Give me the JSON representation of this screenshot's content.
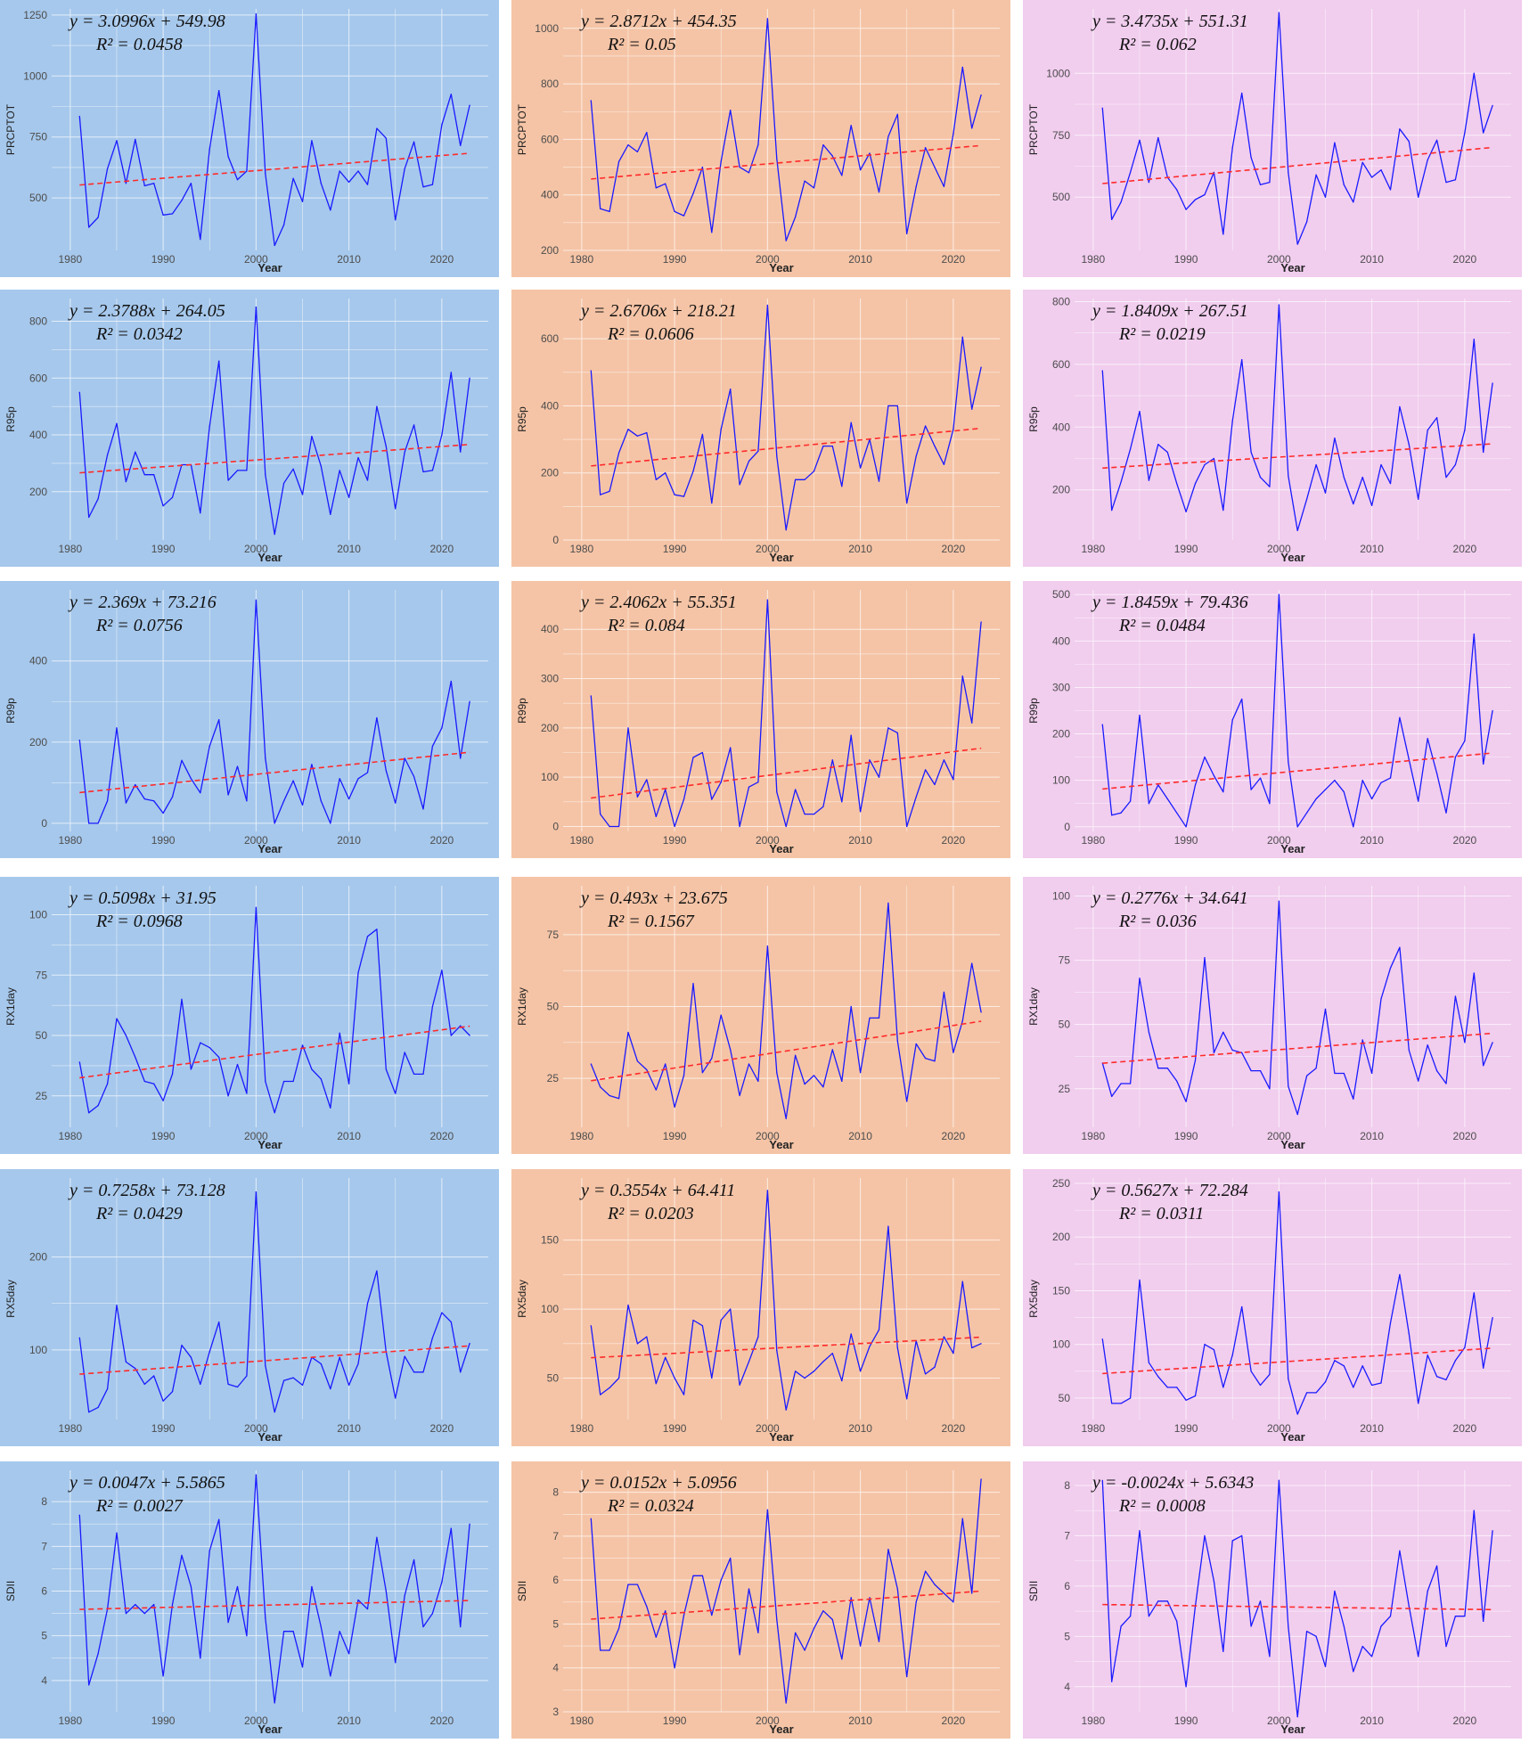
{
  "colors": {
    "Tmax": "#a6c8ec",
    "Tmin": "#f5c4a6",
    "Tmean": "#f1cdee",
    "series": "#1a1aff",
    "trend": "#ff2a2a",
    "grid": "#ffffff"
  },
  "chart_data": [
    {
      "type": "line",
      "background": "#a6c8ec",
      "ylabel": "PRCPTOT",
      "xlabel": "Year",
      "equation": "y = 3.0996x + 549.98",
      "r2": "R² = 0.0458",
      "slope": 3.0996,
      "intercept": 549.98,
      "xlim": [
        1978,
        2025
      ],
      "ylim": [
        285,
        1275
      ],
      "xticks": [
        1980,
        1990,
        2000,
        2010,
        2020
      ],
      "yticks": [
        500,
        750,
        1000,
        1250
      ],
      "grid": true,
      "values": [
        835,
        380,
        420,
        620,
        735,
        560,
        740,
        550,
        560,
        430,
        435,
        490,
        560,
        330,
        700,
        940,
        670,
        575,
        610,
        1255,
        600,
        305,
        390,
        580,
        485,
        735,
        560,
        450,
        610,
        565,
        610,
        555,
        785,
        745,
        410,
        620,
        730,
        545,
        555,
        800,
        925,
        715,
        880
      ]
    },
    {
      "type": "line",
      "background": "#f5c4a6",
      "ylabel": "PRCPTOT",
      "xlabel": "Year",
      "equation": "y = 2.8712x + 454.35",
      "r2": "R² = 0.05",
      "slope": 2.8712,
      "intercept": 454.35,
      "xlim": [
        1978,
        2025
      ],
      "ylim": [
        200,
        1070
      ],
      "xticks": [
        1980,
        1990,
        2000,
        2010,
        2020
      ],
      "yticks": [
        200,
        400,
        600,
        800,
        1000
      ],
      "grid": true,
      "values": [
        740,
        350,
        340,
        520,
        580,
        555,
        625,
        425,
        440,
        340,
        325,
        405,
        500,
        265,
        520,
        705,
        500,
        480,
        580,
        1035,
        530,
        235,
        320,
        450,
        425,
        580,
        540,
        470,
        650,
        490,
        550,
        410,
        610,
        690,
        260,
        430,
        570,
        500,
        430,
        620,
        860,
        640,
        760
      ]
    },
    {
      "type": "line",
      "background": "#f1cdee",
      "ylabel": "PRCPTOT",
      "xlabel": "Year",
      "equation": "y = 3.4735x + 551.31",
      "r2": "R² = 0.062",
      "slope": 3.4735,
      "intercept": 551.31,
      "xlim": [
        1978,
        2025
      ],
      "ylim": [
        285,
        1260
      ],
      "xticks": [
        1980,
        1990,
        2000,
        2010,
        2020
      ],
      "yticks": [
        500,
        750,
        1000
      ],
      "grid": true,
      "values": [
        860,
        410,
        480,
        600,
        730,
        560,
        740,
        580,
        530,
        450,
        490,
        510,
        600,
        350,
        700,
        920,
        660,
        550,
        560,
        1245,
        600,
        310,
        400,
        590,
        500,
        720,
        550,
        480,
        640,
        580,
        610,
        530,
        775,
        725,
        500,
        650,
        730,
        560,
        570,
        760,
        1000,
        760,
        870
      ]
    },
    {
      "type": "line",
      "background": "#a6c8ec",
      "ylabel": "R95p",
      "xlabel": "Year",
      "equation": "y = 2.3788x + 264.05",
      "r2": "R² = 0.0342",
      "slope": 2.3788,
      "intercept": 264.05,
      "xlim": [
        1978,
        2025
      ],
      "ylim": [
        30,
        880
      ],
      "xticks": [
        1980,
        1990,
        2000,
        2010,
        2020
      ],
      "yticks": [
        200,
        400,
        600,
        800
      ],
      "grid": true,
      "values": [
        550,
        110,
        175,
        330,
        440,
        235,
        340,
        260,
        260,
        150,
        180,
        295,
        295,
        125,
        430,
        660,
        240,
        275,
        275,
        850,
        260,
        50,
        230,
        280,
        190,
        395,
        290,
        120,
        275,
        180,
        320,
        240,
        500,
        360,
        140,
        340,
        435,
        270,
        275,
        400,
        620,
        340,
        600
      ]
    },
    {
      "type": "line",
      "background": "#f5c4a6",
      "ylabel": "R95p",
      "xlabel": "Year",
      "equation": "y = 2.6706x + 218.21",
      "r2": "R² = 0.0606",
      "slope": 2.6706,
      "intercept": 218.21,
      "xlim": [
        1978,
        2025
      ],
      "ylim": [
        0,
        720
      ],
      "xticks": [
        1980,
        1990,
        2000,
        2010,
        2020
      ],
      "yticks": [
        0,
        200,
        400,
        600
      ],
      "grid": true,
      "values": [
        505,
        135,
        145,
        260,
        330,
        310,
        320,
        180,
        200,
        135,
        130,
        205,
        315,
        110,
        330,
        450,
        165,
        235,
        265,
        700,
        250,
        30,
        180,
        180,
        205,
        280,
        280,
        160,
        350,
        215,
        300,
        175,
        400,
        400,
        110,
        250,
        340,
        280,
        225,
        330,
        605,
        390,
        515
      ]
    },
    {
      "type": "line",
      "background": "#f1cdee",
      "ylabel": "R95p",
      "xlabel": "Year",
      "equation": "y = 1.8409x + 267.51",
      "r2": "R² = 0.0219",
      "slope": 1.8409,
      "intercept": 267.51,
      "xlim": [
        1978,
        2025
      ],
      "ylim": [
        40,
        810
      ],
      "xticks": [
        1980,
        1990,
        2000,
        2010,
        2020
      ],
      "yticks": [
        200,
        400,
        600,
        800
      ],
      "grid": true,
      "values": [
        580,
        135,
        225,
        330,
        450,
        230,
        345,
        320,
        220,
        130,
        220,
        280,
        300,
        135,
        420,
        615,
        320,
        240,
        210,
        790,
        245,
        70,
        170,
        280,
        190,
        365,
        240,
        155,
        240,
        150,
        280,
        220,
        465,
        345,
        170,
        390,
        430,
        240,
        280,
        390,
        680,
        320,
        540
      ]
    },
    {
      "type": "line",
      "background": "#a6c8ec",
      "ylabel": "R99p",
      "xlabel": "Year",
      "equation": "y = 2.369x + 73.216",
      "r2": "R² = 0.0756",
      "slope": 2.369,
      "intercept": 73.216,
      "xlim": [
        1978,
        2025
      ],
      "ylim": [
        -20,
        575
      ],
      "xticks": [
        1980,
        1990,
        2000,
        2010,
        2020
      ],
      "yticks": [
        0,
        200,
        400
      ],
      "grid": true,
      "values": [
        205,
        0,
        0,
        55,
        235,
        50,
        95,
        60,
        55,
        25,
        65,
        155,
        110,
        75,
        190,
        255,
        70,
        140,
        55,
        550,
        160,
        0,
        55,
        105,
        45,
        145,
        55,
        0,
        110,
        60,
        110,
        125,
        260,
        130,
        50,
        160,
        115,
        35,
        190,
        235,
        350,
        160,
        300
      ]
    },
    {
      "type": "line",
      "background": "#f5c4a6",
      "ylabel": "R99p",
      "xlabel": "Year",
      "equation": "y = 2.4062x + 55.351",
      "r2": "R² = 0.084",
      "slope": 2.4062,
      "intercept": 55.351,
      "xlim": [
        1978,
        2025
      ],
      "ylim": [
        -10,
        480
      ],
      "xticks": [
        1980,
        1990,
        2000,
        2010,
        2020
      ],
      "yticks": [
        0,
        100,
        200,
        300,
        400
      ],
      "grid": true,
      "values": [
        265,
        25,
        0,
        0,
        200,
        60,
        95,
        20,
        75,
        0,
        55,
        140,
        150,
        55,
        90,
        160,
        0,
        80,
        90,
        460,
        70,
        0,
        75,
        25,
        25,
        40,
        135,
        50,
        185,
        30,
        135,
        100,
        200,
        190,
        0,
        60,
        115,
        85,
        135,
        95,
        305,
        210,
        415
      ]
    },
    {
      "type": "line",
      "background": "#f1cdee",
      "ylabel": "R99p",
      "xlabel": "Year",
      "equation": "y = 1.8459x + 79.436",
      "r2": "R² = 0.0484",
      "slope": 1.8459,
      "intercept": 79.436,
      "xlim": [
        1978,
        2025
      ],
      "ylim": [
        -10,
        510
      ],
      "xticks": [
        1980,
        1990,
        2000,
        2010,
        2020
      ],
      "yticks": [
        0,
        100,
        200,
        300,
        400,
        500
      ],
      "grid": true,
      "values": [
        220,
        25,
        30,
        55,
        240,
        50,
        90,
        60,
        30,
        0,
        90,
        150,
        110,
        75,
        230,
        275,
        80,
        105,
        50,
        500,
        140,
        0,
        30,
        60,
        80,
        100,
        75,
        0,
        100,
        60,
        95,
        105,
        235,
        145,
        55,
        190,
        115,
        30,
        150,
        185,
        415,
        135,
        250
      ]
    },
    {
      "type": "line",
      "background": "#a6c8ec",
      "ylabel": "RX1day",
      "xlabel": "Year",
      "equation": "y = 0.5098x + 31.95",
      "r2": "R² = 0.0968",
      "slope": 0.5098,
      "intercept": 31.95,
      "xlim": [
        1978,
        2025
      ],
      "ylim": [
        12,
        112
      ],
      "xticks": [
        1980,
        1990,
        2000,
        2010,
        2020
      ],
      "yticks": [
        25,
        50,
        75,
        100
      ],
      "grid": true,
      "values": [
        39,
        18,
        21,
        30,
        57,
        50,
        41,
        31,
        30,
        23,
        34,
        65,
        36,
        47,
        45,
        41,
        25,
        38,
        26,
        103,
        31,
        18,
        31,
        31,
        46,
        36,
        32,
        20,
        51,
        30,
        76,
        91,
        94,
        36,
        26,
        43,
        34,
        34,
        62,
        77,
        50,
        54,
        50
      ]
    },
    {
      "type": "line",
      "background": "#f5c4a6",
      "ylabel": "RX1day",
      "xlabel": "Year",
      "equation": "y = 0.493x + 23.675",
      "r2": "R² = 0.1567",
      "slope": 0.493,
      "intercept": 23.675,
      "xlim": [
        1978,
        2025
      ],
      "ylim": [
        8,
        92
      ],
      "xticks": [
        1980,
        1990,
        2000,
        2010,
        2020
      ],
      "yticks": [
        25,
        50,
        75
      ],
      "grid": true,
      "values": [
        30,
        22,
        19,
        18,
        41,
        31,
        28,
        21,
        30,
        15,
        26,
        58,
        27,
        32,
        47,
        35,
        19,
        30,
        24,
        71,
        27,
        11,
        33,
        23,
        26,
        22,
        35,
        24,
        50,
        27,
        46,
        46,
        86,
        38,
        17,
        37,
        32,
        31,
        55,
        34,
        45,
        65,
        48
      ]
    },
    {
      "type": "line",
      "background": "#f1cdee",
      "ylabel": "RX1day",
      "xlabel": "Year",
      "equation": "y = 0.2776x + 34.641",
      "r2": "R² = 0.036",
      "slope": 0.2776,
      "intercept": 34.641,
      "xlim": [
        1978,
        2025
      ],
      "ylim": [
        10,
        104
      ],
      "xticks": [
        1980,
        1990,
        2000,
        2010,
        2020
      ],
      "yticks": [
        25,
        50,
        75,
        100
      ],
      "grid": true,
      "values": [
        35,
        22,
        27,
        27,
        68,
        47,
        33,
        33,
        28,
        20,
        36,
        76,
        39,
        47,
        40,
        39,
        32,
        32,
        25,
        98,
        26,
        15,
        30,
        33,
        56,
        31,
        31,
        21,
        44,
        31,
        60,
        72,
        80,
        40,
        28,
        42,
        32,
        27,
        61,
        43,
        70,
        34,
        43
      ]
    },
    {
      "type": "line",
      "background": "#a6c8ec",
      "ylabel": "RX5day",
      "xlabel": "Year",
      "equation": "y = 0.7258x + 73.128",
      "r2": "R² = 0.0429",
      "slope": 0.7258,
      "intercept": 73.128,
      "xlim": [
        1978,
        2025
      ],
      "ylim": [
        25,
        285
      ],
      "xticks": [
        1980,
        1990,
        2000,
        2010,
        2020
      ],
      "yticks": [
        100,
        200
      ],
      "grid": true,
      "values": [
        113,
        33,
        38,
        58,
        148,
        87,
        80,
        63,
        72,
        45,
        55,
        105,
        92,
        63,
        98,
        130,
        63,
        60,
        72,
        270,
        83,
        33,
        67,
        70,
        62,
        92,
        85,
        58,
        92,
        62,
        85,
        150,
        185,
        98,
        48,
        93,
        76,
        76,
        113,
        140,
        130,
        76,
        107
      ]
    },
    {
      "type": "line",
      "background": "#f5c4a6",
      "ylabel": "RX5day",
      "xlabel": "Year",
      "equation": "y = 0.3554x + 64.411",
      "r2": "R² = 0.0203",
      "slope": 0.3554,
      "intercept": 64.411,
      "xlim": [
        1978,
        2025
      ],
      "ylim": [
        20,
        195
      ],
      "xticks": [
        1980,
        1990,
        2000,
        2010,
        2020
      ],
      "yticks": [
        50,
        100,
        150
      ],
      "grid": true,
      "values": [
        88,
        38,
        43,
        50,
        103,
        75,
        80,
        46,
        65,
        50,
        38,
        92,
        88,
        50,
        92,
        100,
        45,
        62,
        80,
        186,
        70,
        27,
        55,
        50,
        55,
        62,
        68,
        48,
        82,
        55,
        73,
        85,
        160,
        72,
        35,
        77,
        53,
        58,
        80,
        68,
        120,
        72,
        75
      ]
    },
    {
      "type": "line",
      "background": "#f1cdee",
      "ylabel": "RX5day",
      "xlabel": "Year",
      "equation": "y = 0.5627x + 72.284",
      "r2": "R² = 0.0311",
      "slope": 0.5627,
      "intercept": 72.284,
      "xlim": [
        1978,
        2025
      ],
      "ylim": [
        30,
        255
      ],
      "xticks": [
        1980,
        1990,
        2000,
        2010,
        2020
      ],
      "yticks": [
        50,
        100,
        150,
        200,
        250
      ],
      "grid": true,
      "values": [
        105,
        45,
        45,
        50,
        160,
        83,
        70,
        60,
        60,
        48,
        52,
        100,
        95,
        60,
        90,
        135,
        75,
        62,
        72,
        242,
        68,
        35,
        55,
        55,
        65,
        85,
        80,
        60,
        80,
        62,
        64,
        120,
        165,
        110,
        45,
        90,
        70,
        67,
        85,
        97,
        148,
        78,
        125
      ]
    },
    {
      "type": "line",
      "background": "#a6c8ec",
      "ylabel": "SDII",
      "xlabel": "Year",
      "equation": "y = 0.0047x + 5.5865",
      "r2": "R² = 0.0027",
      "slope": 0.0047,
      "intercept": 5.5865,
      "xlim": [
        1978,
        2025
      ],
      "ylim": [
        3.3,
        8.7
      ],
      "xticks": [
        1980,
        1990,
        2000,
        2010,
        2020
      ],
      "yticks": [
        4,
        5,
        6,
        7,
        8
      ],
      "grid": true,
      "values": [
        7.7,
        3.9,
        4.6,
        5.6,
        7.3,
        5.5,
        5.7,
        5.5,
        5.7,
        4.1,
        5.7,
        6.8,
        6.1,
        4.5,
        6.9,
        7.6,
        5.3,
        6.1,
        5.0,
        8.6,
        5.4,
        3.5,
        5.1,
        5.1,
        4.3,
        6.1,
        5.2,
        4.1,
        5.1,
        4.6,
        5.8,
        5.6,
        7.2,
        6.0,
        4.4,
        5.9,
        6.7,
        5.2,
        5.5,
        6.2,
        7.4,
        5.2,
        7.5
      ]
    },
    {
      "type": "line",
      "background": "#f5c4a6",
      "ylabel": "SDII",
      "xlabel": "Year",
      "equation": "y = 0.0152x + 5.0956",
      "r2": "R² = 0.0324",
      "slope": 0.0152,
      "intercept": 5.0956,
      "xlim": [
        1978,
        2025
      ],
      "ylim": [
        3.0,
        8.5
      ],
      "xticks": [
        1980,
        1990,
        2000,
        2010,
        2020
      ],
      "yticks": [
        3,
        4,
        5,
        6,
        7,
        8
      ],
      "grid": true,
      "values": [
        7.4,
        4.4,
        4.4,
        4.9,
        5.9,
        5.9,
        5.4,
        4.7,
        5.3,
        4.0,
        5.2,
        6.1,
        6.1,
        5.2,
        6.0,
        6.5,
        4.3,
        5.8,
        4.8,
        7.6,
        5.1,
        3.2,
        4.8,
        4.4,
        4.9,
        5.3,
        5.1,
        4.2,
        5.6,
        4.5,
        5.6,
        4.6,
        6.7,
        5.8,
        3.8,
        5.5,
        6.2,
        5.9,
        5.7,
        5.5,
        7.4,
        5.7,
        8.3
      ]
    },
    {
      "type": "line",
      "background": "#f1cdee",
      "ylabel": "SDII",
      "xlabel": "Year",
      "equation": "y = -0.0024x + 5.6343",
      "r2": "R² = 0.0008",
      "slope": -0.0024,
      "intercept": 5.6343,
      "xlim": [
        1978,
        2025
      ],
      "ylim": [
        3.5,
        8.3
      ],
      "xticks": [
        1980,
        1990,
        2000,
        2010,
        2020
      ],
      "yticks": [
        4,
        5,
        6,
        7,
        8
      ],
      "grid": true,
      "values": [
        8.1,
        4.1,
        5.2,
        5.4,
        7.1,
        5.4,
        5.7,
        5.7,
        5.3,
        4.0,
        5.6,
        7.0,
        6.1,
        4.7,
        6.9,
        7.0,
        5.2,
        5.7,
        4.6,
        8.1,
        5.2,
        3.4,
        5.1,
        5.0,
        4.4,
        5.9,
        5.2,
        4.3,
        4.8,
        4.6,
        5.2,
        5.4,
        6.7,
        5.6,
        4.6,
        5.9,
        6.4,
        4.8,
        5.4,
        5.4,
        7.5,
        5.3,
        7.1
      ]
    }
  ]
}
